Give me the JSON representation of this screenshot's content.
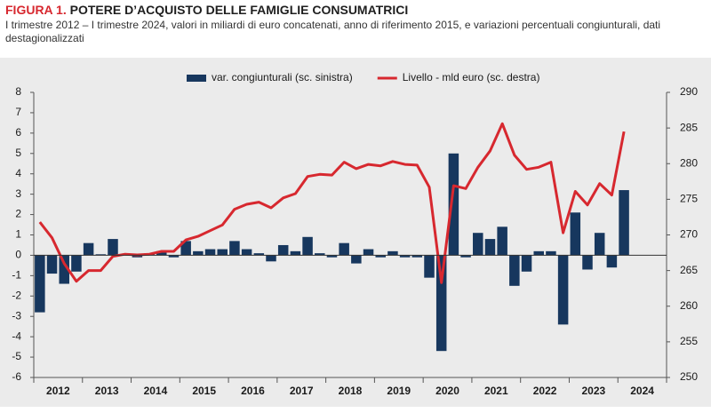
{
  "chart_data": {
    "type": "bar_line",
    "figure_label": "FIGURA 1.",
    "title": "POTERE D’ACQUISTO DELLE FAMIGLIE CONSUMATRICI",
    "subtitle": "I trimestre 2012 – I trimestre 2024, valori in miliardi di euro concatenati, anno di riferimento 2015, e variazioni percentuali congiunturali, dati destagionalizzati",
    "categories": [
      "2012",
      null,
      null,
      null,
      "2013",
      null,
      null,
      null,
      "2014",
      null,
      null,
      null,
      "2015",
      null,
      null,
      null,
      "2016",
      null,
      null,
      null,
      "2017",
      null,
      null,
      null,
      "2018",
      null,
      null,
      null,
      "2019",
      null,
      null,
      null,
      "2020",
      null,
      null,
      null,
      "2021",
      null,
      null,
      null,
      "2022",
      null,
      null,
      null,
      "2023",
      null,
      null,
      null,
      "2024"
    ],
    "series": [
      {
        "name": "var. congiunturali (sc. sinistra)",
        "type": "bar",
        "color": "#17375e",
        "axis": "y",
        "values": [
          -2.8,
          -0.9,
          -1.4,
          -0.8,
          0.6,
          0.05,
          0.8,
          0.05,
          -0.1,
          0.1,
          0.2,
          -0.1,
          0.7,
          0.2,
          0.3,
          0.3,
          0.7,
          0.3,
          0.1,
          -0.3,
          0.5,
          0.2,
          0.9,
          0.1,
          -0.1,
          0.6,
          -0.4,
          0.3,
          -0.1,
          0.2,
          -0.1,
          -0.1,
          -1.1,
          -4.7,
          5.0,
          -0.1,
          1.1,
          0.8,
          1.4,
          -1.5,
          -0.8,
          0.2,
          0.2,
          -3.4,
          2.1,
          -0.7,
          1.1,
          -0.6,
          3.2
        ]
      },
      {
        "name": "Livello - mld euro (sc. destra)",
        "type": "line",
        "color": "#d7282f",
        "axis": "y2",
        "values": [
          271.8,
          269.6,
          266,
          263.5,
          265,
          265,
          267,
          267.3,
          267.2,
          267.3,
          267.7,
          267.7,
          269.3,
          269.8,
          270.6,
          271.4,
          273.6,
          274.3,
          274.6,
          273.8,
          275.2,
          275.8,
          278.2,
          278.5,
          278.4,
          280.2,
          279.3,
          279.9,
          279.7,
          280.3,
          279.9,
          279.8,
          276.7,
          263.3,
          276.9,
          276.5,
          279.5,
          281.8,
          285.6,
          281.2,
          279.2,
          279.5,
          280.2,
          270.3,
          276.1,
          274.2,
          277.2,
          275.6,
          284.5
        ]
      }
    ],
    "ylim": [
      -6,
      8
    ],
    "yticks": [
      -6,
      -5,
      -4,
      -3,
      -2,
      -1,
      0,
      1,
      2,
      3,
      4,
      5,
      6,
      7,
      8
    ],
    "y2lim": [
      250,
      290
    ],
    "y2ticks": [
      250,
      255,
      260,
      265,
      270,
      275,
      280,
      285,
      290
    ],
    "legend": "top",
    "background": "#ebebeb"
  }
}
